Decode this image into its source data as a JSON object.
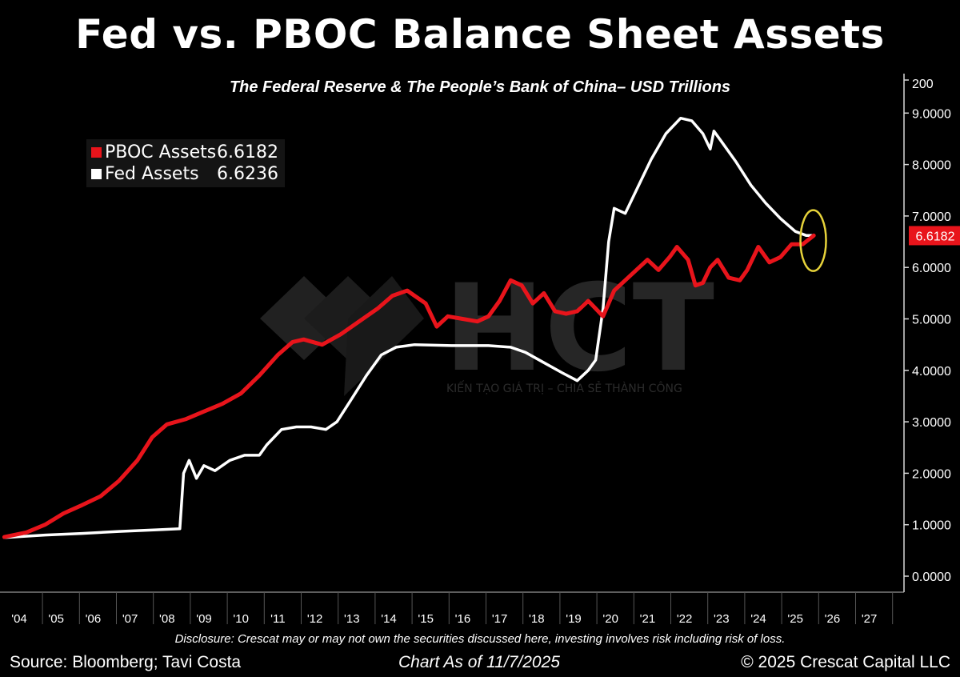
{
  "header": {
    "title": "Fed vs. PBOC Balance Sheet Assets",
    "subtitle": "The Federal Reserve & The People’s Bank of China– USD Trillions"
  },
  "legend": {
    "pboc": {
      "label": "PBOC Assets",
      "value": "6.6182",
      "color": "#e8141b"
    },
    "fed": {
      "label": "Fed Assets",
      "value": "6.6236",
      "color": "#ffffff"
    }
  },
  "watermark": {
    "text": "HCT",
    "tagline": "KIẾN TẠO GIÁ TRỊ – CHIA SẺ THÀNH CÔNG"
  },
  "chart_data": {
    "type": "line",
    "ylim": [
      0,
      10
    ],
    "y_ticks": [
      "0.0000",
      "1.0000",
      "2.0000",
      "3.0000",
      "4.0000",
      "5.0000",
      "6.0000",
      "7.0000",
      "8.0000",
      "9.0000"
    ],
    "y_top_partial_label": "200",
    "x_ticks": [
      "'04",
      "'05",
      "'06",
      "'07",
      "'08",
      "'09",
      "'10",
      "'11",
      "'12",
      "'13",
      "'14",
      "'15",
      "'16",
      "'17",
      "'18",
      "'19",
      "'20",
      "'21",
      "'22",
      "'23",
      "'24",
      "'25",
      "'26",
      "'27"
    ],
    "last_value_label": {
      "text": "6.6182",
      "y": 6.6182,
      "color": "#e8141b"
    },
    "highlight_ellipse": {
      "x": 2025.7,
      "y": 6.6,
      "color": "#e6d23a"
    },
    "series": [
      {
        "name": "PBOC Assets",
        "color": "#e8141b",
        "points": [
          [
            2003.9,
            0.76
          ],
          [
            2004.5,
            0.85
          ],
          [
            2005.0,
            1.0
          ],
          [
            2005.5,
            1.22
          ],
          [
            2006.0,
            1.38
          ],
          [
            2006.5,
            1.55
          ],
          [
            2007.0,
            1.85
          ],
          [
            2007.5,
            2.25
          ],
          [
            2007.9,
            2.7
          ],
          [
            2008.3,
            2.95
          ],
          [
            2008.8,
            3.05
          ],
          [
            2009.3,
            3.2
          ],
          [
            2009.8,
            3.35
          ],
          [
            2010.3,
            3.55
          ],
          [
            2010.8,
            3.9
          ],
          [
            2011.3,
            4.3
          ],
          [
            2011.7,
            4.55
          ],
          [
            2012.0,
            4.6
          ],
          [
            2012.5,
            4.5
          ],
          [
            2013.0,
            4.7
          ],
          [
            2013.5,
            4.95
          ],
          [
            2014.0,
            5.2
          ],
          [
            2014.4,
            5.45
          ],
          [
            2014.8,
            5.55
          ],
          [
            2015.0,
            5.45
          ],
          [
            2015.3,
            5.3
          ],
          [
            2015.6,
            4.85
          ],
          [
            2015.9,
            5.05
          ],
          [
            2016.3,
            5.0
          ],
          [
            2016.7,
            4.95
          ],
          [
            2017.0,
            5.05
          ],
          [
            2017.3,
            5.35
          ],
          [
            2017.6,
            5.75
          ],
          [
            2017.9,
            5.65
          ],
          [
            2018.2,
            5.3
          ],
          [
            2018.5,
            5.5
          ],
          [
            2018.8,
            5.15
          ],
          [
            2019.1,
            5.1
          ],
          [
            2019.4,
            5.15
          ],
          [
            2019.7,
            5.35
          ],
          [
            2019.9,
            5.2
          ],
          [
            2020.1,
            5.05
          ],
          [
            2020.4,
            5.55
          ],
          [
            2020.7,
            5.75
          ],
          [
            2021.0,
            5.95
          ],
          [
            2021.3,
            6.15
          ],
          [
            2021.6,
            5.95
          ],
          [
            2021.9,
            6.2
          ],
          [
            2022.1,
            6.4
          ],
          [
            2022.4,
            6.15
          ],
          [
            2022.6,
            5.65
          ],
          [
            2022.8,
            5.7
          ],
          [
            2023.0,
            6.0
          ],
          [
            2023.2,
            6.15
          ],
          [
            2023.5,
            5.8
          ],
          [
            2023.8,
            5.75
          ],
          [
            2024.0,
            5.95
          ],
          [
            2024.3,
            6.4
          ],
          [
            2024.6,
            6.1
          ],
          [
            2024.9,
            6.2
          ],
          [
            2025.2,
            6.45
          ],
          [
            2025.5,
            6.45
          ],
          [
            2025.8,
            6.62
          ]
        ]
      },
      {
        "name": "Fed Assets",
        "color": "#ffffff",
        "points": [
          [
            2003.9,
            0.75
          ],
          [
            2005.0,
            0.8
          ],
          [
            2006.0,
            0.83
          ],
          [
            2007.0,
            0.87
          ],
          [
            2008.0,
            0.9
          ],
          [
            2008.65,
            0.92
          ],
          [
            2008.75,
            2.0
          ],
          [
            2008.9,
            2.25
          ],
          [
            2009.1,
            1.9
          ],
          [
            2009.3,
            2.15
          ],
          [
            2009.6,
            2.05
          ],
          [
            2010.0,
            2.25
          ],
          [
            2010.4,
            2.35
          ],
          [
            2010.8,
            2.35
          ],
          [
            2011.0,
            2.55
          ],
          [
            2011.4,
            2.85
          ],
          [
            2011.8,
            2.9
          ],
          [
            2012.2,
            2.9
          ],
          [
            2012.6,
            2.85
          ],
          [
            2012.9,
            3.0
          ],
          [
            2013.3,
            3.45
          ],
          [
            2013.7,
            3.9
          ],
          [
            2014.1,
            4.3
          ],
          [
            2014.5,
            4.45
          ],
          [
            2015.0,
            4.5
          ],
          [
            2016.0,
            4.48
          ],
          [
            2017.0,
            4.48
          ],
          [
            2017.6,
            4.45
          ],
          [
            2018.0,
            4.35
          ],
          [
            2018.5,
            4.15
          ],
          [
            2019.0,
            3.95
          ],
          [
            2019.4,
            3.8
          ],
          [
            2019.7,
            4.0
          ],
          [
            2019.9,
            4.2
          ],
          [
            2020.1,
            5.2
          ],
          [
            2020.25,
            6.5
          ],
          [
            2020.4,
            7.15
          ],
          [
            2020.7,
            7.05
          ],
          [
            2021.0,
            7.5
          ],
          [
            2021.4,
            8.1
          ],
          [
            2021.8,
            8.6
          ],
          [
            2022.2,
            8.9
          ],
          [
            2022.5,
            8.85
          ],
          [
            2022.8,
            8.6
          ],
          [
            2023.0,
            8.3
          ],
          [
            2023.1,
            8.65
          ],
          [
            2023.3,
            8.45
          ],
          [
            2023.7,
            8.05
          ],
          [
            2024.1,
            7.6
          ],
          [
            2024.5,
            7.25
          ],
          [
            2024.9,
            6.95
          ],
          [
            2025.3,
            6.7
          ],
          [
            2025.6,
            6.62
          ],
          [
            2025.8,
            6.62
          ]
        ]
      }
    ]
  },
  "footer": {
    "disclosure": "Disclosure: Crescat may or may not own the securities discussed here, investing involves risk including risk of loss.",
    "source": "Source: Bloomberg; Tavi Costa",
    "as_of": "Chart As of 11/7/2025",
    "copyright": "© 2025 Crescat Capital LLC"
  }
}
